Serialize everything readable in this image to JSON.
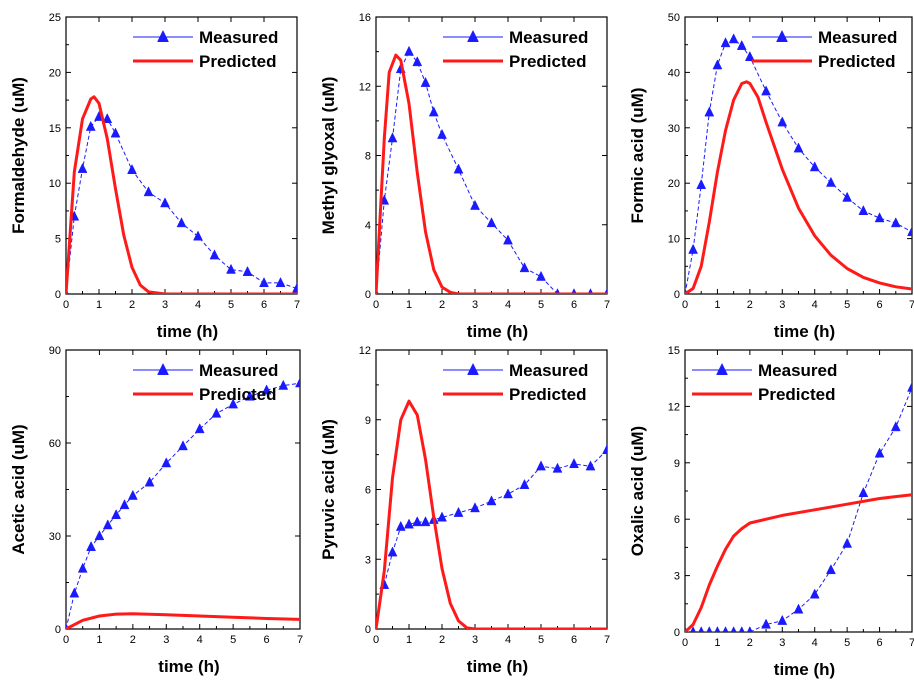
{
  "colors": {
    "measured": "#1a1aff",
    "predicted": "#ff1a1a",
    "axis": "#000000"
  },
  "chart_data": [
    {
      "type": "line",
      "xlabel": "time (h)",
      "ylabel": "Formaldehyde (uM)",
      "xlim": [
        0,
        7
      ],
      "ylim": [
        0,
        25
      ],
      "xticks": [
        0,
        1,
        2,
        3,
        4,
        5,
        6,
        7
      ],
      "yticks": [
        0,
        5,
        10,
        15,
        20,
        25
      ],
      "legend": "top-right",
      "series": [
        {
          "name": "Measured",
          "marker": "triangle",
          "x": [
            0,
            0.25,
            0.5,
            0.75,
            1.0,
            1.25,
            1.5,
            2.0,
            2.5,
            3.0,
            3.5,
            4.0,
            4.5,
            5.0,
            5.5,
            6.0,
            6.5,
            7.0
          ],
          "y": [
            0,
            7.0,
            11.3,
            15.1,
            16.0,
            15.8,
            14.5,
            11.2,
            9.2,
            8.2,
            6.4,
            5.2,
            3.5,
            2.2,
            2.0,
            1.0,
            1.0,
            0.5
          ]
        },
        {
          "name": "Predicted",
          "marker": "none",
          "x": [
            0,
            0.25,
            0.5,
            0.75,
            0.85,
            1.0,
            1.25,
            1.5,
            1.75,
            2.0,
            2.25,
            2.5,
            3.0,
            7.0
          ],
          "y": [
            0,
            11.0,
            15.8,
            17.6,
            17.8,
            17.2,
            14.0,
            9.5,
            5.3,
            2.4,
            0.8,
            0.2,
            0,
            0
          ]
        }
      ]
    },
    {
      "type": "line",
      "xlabel": "time (h)",
      "ylabel": "Methyl glyoxal (uM)",
      "xlim": [
        0,
        7
      ],
      "ylim": [
        0,
        16
      ],
      "xticks": [
        0,
        1,
        2,
        3,
        4,
        5,
        6,
        7
      ],
      "yticks": [
        0,
        4,
        8,
        12,
        16
      ],
      "legend": "top-right",
      "series": [
        {
          "name": "Measured",
          "marker": "triangle",
          "x": [
            0,
            0.25,
            0.5,
            0.75,
            1.0,
            1.25,
            1.5,
            1.75,
            2.0,
            2.5,
            3.0,
            3.5,
            4.0,
            4.5,
            5.0,
            5.5,
            6.0,
            6.5,
            7.0
          ],
          "y": [
            0,
            5.4,
            9.0,
            13.0,
            14.0,
            13.4,
            12.2,
            10.5,
            9.2,
            7.2,
            5.1,
            4.1,
            3.1,
            1.5,
            1.0,
            0,
            0,
            0,
            0
          ]
        },
        {
          "name": "Predicted",
          "marker": "none",
          "x": [
            0,
            0.25,
            0.4,
            0.6,
            0.75,
            1.0,
            1.25,
            1.5,
            1.75,
            2.0,
            2.25,
            2.5,
            3.0,
            7.0
          ],
          "y": [
            0,
            9.0,
            12.8,
            13.8,
            13.5,
            11.0,
            7.0,
            3.6,
            1.4,
            0.4,
            0.1,
            0,
            0,
            0
          ]
        }
      ]
    },
    {
      "type": "line",
      "xlabel": "time (h)",
      "ylabel": "Formic acid (uM)",
      "xlim": [
        0,
        7
      ],
      "ylim": [
        0,
        50
      ],
      "xticks": [
        0,
        1,
        2,
        3,
        4,
        5,
        6,
        7
      ],
      "yticks": [
        0,
        10,
        20,
        30,
        40,
        50
      ],
      "legend": "top-right",
      "series": [
        {
          "name": "Measured",
          "marker": "triangle",
          "x": [
            0,
            0.25,
            0.5,
            0.75,
            1.0,
            1.25,
            1.5,
            1.75,
            2.0,
            2.5,
            3.0,
            3.5,
            4.0,
            4.5,
            5.0,
            5.5,
            6.0,
            6.5,
            7.0
          ],
          "y": [
            0,
            8.0,
            19.7,
            32.8,
            41.3,
            45.3,
            46.0,
            44.8,
            42.8,
            36.6,
            31.0,
            26.3,
            22.9,
            20.1,
            17.4,
            15.0,
            13.7,
            12.8,
            11.2
          ]
        },
        {
          "name": "Predicted",
          "marker": "none",
          "x": [
            0,
            0.25,
            0.5,
            0.75,
            1.0,
            1.25,
            1.5,
            1.75,
            1.9,
            2.0,
            2.25,
            2.5,
            3.0,
            3.5,
            4.0,
            4.5,
            5.0,
            5.5,
            6.0,
            6.5,
            7.0
          ],
          "y": [
            0,
            1.0,
            5.0,
            13.0,
            22.0,
            29.5,
            35.0,
            38.0,
            38.3,
            38.0,
            35.5,
            31.0,
            22.5,
            15.5,
            10.5,
            7.0,
            4.6,
            3.0,
            2.0,
            1.3,
            0.9
          ]
        }
      ]
    },
    {
      "type": "line",
      "xlabel": "time (h)",
      "ylabel": "Acetic acid (uM)",
      "xlim": [
        0,
        7
      ],
      "ylim": [
        0,
        90
      ],
      "xticks": [
        0,
        1,
        2,
        3,
        4,
        5,
        6,
        7
      ],
      "yticks": [
        0,
        30,
        60,
        90
      ],
      "legend": "top-right",
      "series": [
        {
          "name": "Measured",
          "marker": "triangle",
          "x": [
            0,
            0.25,
            0.5,
            0.75,
            1.0,
            1.25,
            1.5,
            1.75,
            2.0,
            2.5,
            3.0,
            3.5,
            4.0,
            4.5,
            5.0,
            5.5,
            6.0,
            6.5,
            7.0
          ],
          "y": [
            0,
            11.5,
            19.5,
            26.5,
            30.0,
            33.5,
            36.8,
            40.0,
            43.0,
            47.3,
            53.5,
            59.0,
            64.5,
            69.5,
            72.5,
            75.0,
            77.0,
            78.5,
            79.3
          ]
        },
        {
          "name": "Predicted",
          "marker": "none",
          "x": [
            0,
            0.5,
            1.0,
            1.5,
            2.0,
            3.0,
            4.0,
            5.0,
            6.0,
            7.0
          ],
          "y": [
            0,
            2.8,
            4.2,
            4.8,
            4.9,
            4.6,
            4.2,
            3.8,
            3.4,
            3.1
          ]
        }
      ]
    },
    {
      "type": "line",
      "xlabel": "time (h)",
      "ylabel": "Pyruvic acid (uM)",
      "xlim": [
        0,
        7
      ],
      "ylim": [
        0,
        12
      ],
      "xticks": [
        0,
        1,
        2,
        3,
        4,
        5,
        6,
        7
      ],
      "yticks": [
        0,
        3,
        6,
        9,
        12
      ],
      "legend": "top-right",
      "series": [
        {
          "name": "Measured",
          "marker": "triangle",
          "x": [
            0.25,
            0.5,
            0.75,
            1.0,
            1.25,
            1.5,
            1.75,
            2.0,
            2.5,
            3.0,
            3.5,
            4.0,
            4.5,
            5.0,
            5.5,
            6.0,
            6.5,
            7.0
          ],
          "y": [
            1.9,
            3.3,
            4.4,
            4.5,
            4.6,
            4.6,
            4.7,
            4.8,
            5.0,
            5.2,
            5.5,
            5.8,
            6.2,
            7.0,
            6.9,
            7.1,
            7.0,
            7.7
          ]
        },
        {
          "name": "Predicted",
          "marker": "none",
          "x": [
            0,
            0.25,
            0.5,
            0.75,
            1.0,
            1.25,
            1.5,
            1.75,
            2.0,
            2.25,
            2.5,
            2.75,
            3.0,
            7.0
          ],
          "y": [
            0,
            2.5,
            6.5,
            9.0,
            9.8,
            9.2,
            7.3,
            4.8,
            2.6,
            1.1,
            0.35,
            0.05,
            0,
            0
          ]
        }
      ]
    },
    {
      "type": "line",
      "xlabel": "time (h)",
      "ylabel": "Oxalic acid (uM)",
      "xlim": [
        0,
        7
      ],
      "ylim": [
        0,
        15
      ],
      "xticks": [
        0,
        1,
        2,
        3,
        4,
        5,
        6,
        7
      ],
      "yticks": [
        0,
        3,
        6,
        9,
        12,
        15
      ],
      "legend": "top-left",
      "series": [
        {
          "name": "Measured",
          "marker": "triangle",
          "x": [
            0,
            0.25,
            0.5,
            0.75,
            1.0,
            1.25,
            1.5,
            1.75,
            2.0,
            2.5,
            3.0,
            3.5,
            4.0,
            4.5,
            5.0,
            5.5,
            6.0,
            6.5,
            7.0
          ],
          "y": [
            0,
            0,
            0,
            0,
            0,
            0,
            0,
            0,
            0,
            0.4,
            0.6,
            1.2,
            2.0,
            3.3,
            4.7,
            7.4,
            9.5,
            10.9,
            13.0
          ]
        },
        {
          "name": "Predicted",
          "marker": "none",
          "x": [
            0,
            0.25,
            0.5,
            0.75,
            1.0,
            1.25,
            1.5,
            1.75,
            2.0,
            2.5,
            3.0,
            4.0,
            5.0,
            6.0,
            7.0
          ],
          "y": [
            0,
            0.4,
            1.3,
            2.5,
            3.5,
            4.4,
            5.1,
            5.5,
            5.8,
            6.0,
            6.2,
            6.5,
            6.8,
            7.1,
            7.3
          ]
        }
      ]
    }
  ]
}
